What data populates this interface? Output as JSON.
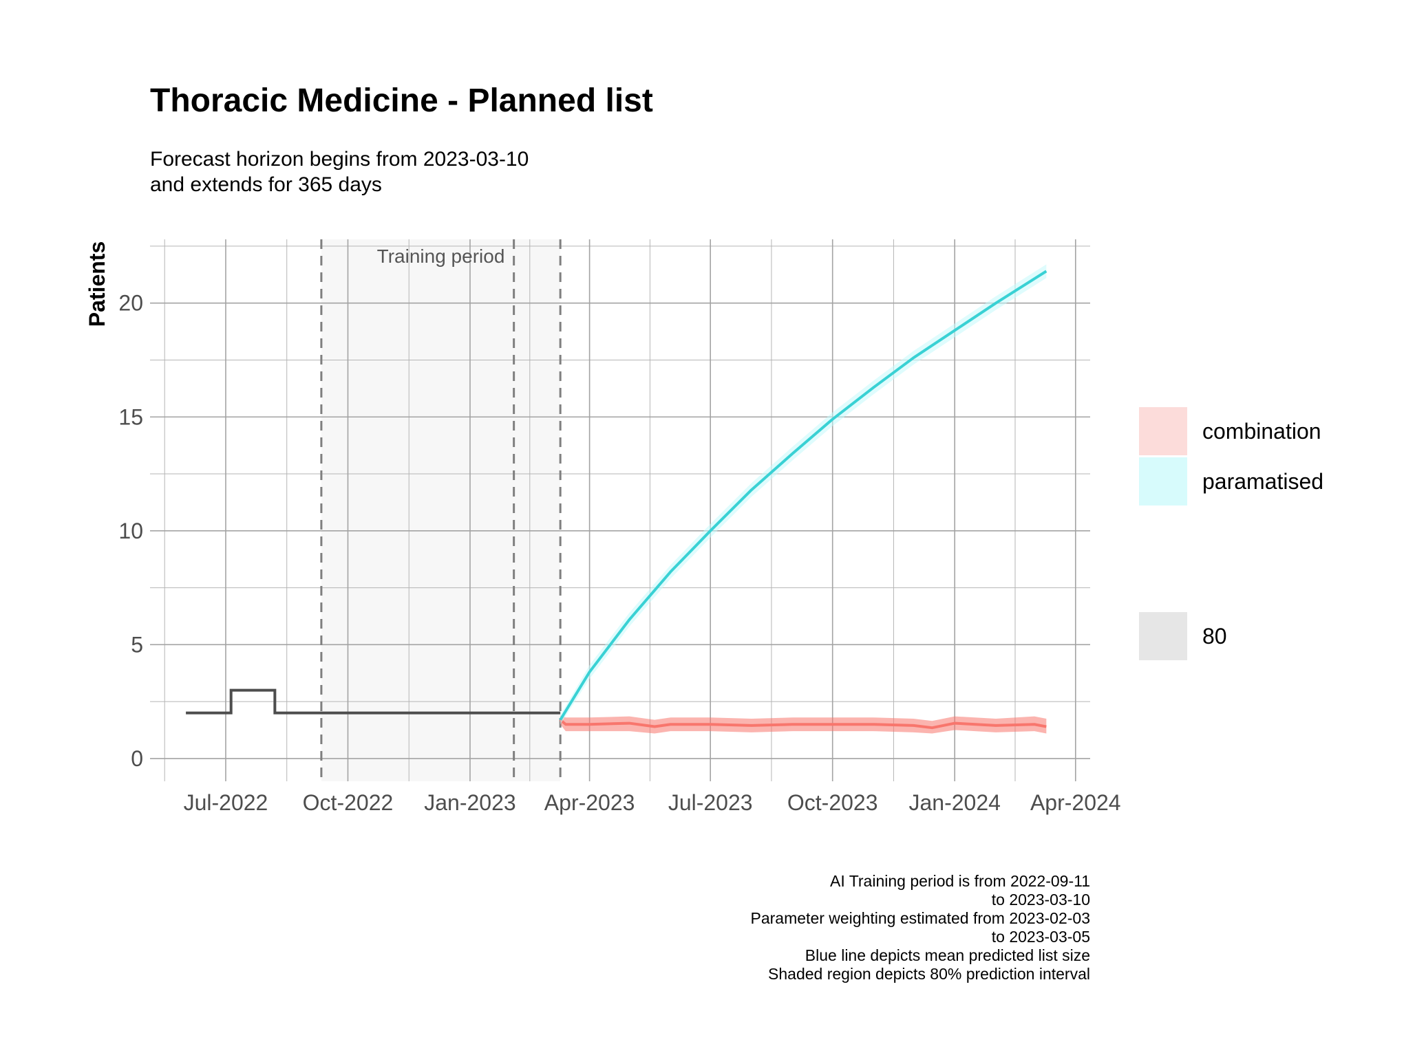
{
  "chart_data": {
    "type": "line",
    "title": "Thoracic Medicine - Planned list",
    "subtitle": [
      "Forecast horizon begins from 2023-03-10",
      "and extends for 365 days"
    ],
    "xlabel": "",
    "ylabel": "Patients",
    "xlim": [
      "2022-05-05",
      "2024-04-12"
    ],
    "ylim": [
      -1,
      22.8
    ],
    "x_ticks": [
      "2022-07-01",
      "2022-10-01",
      "2023-01-01",
      "2023-04-01",
      "2023-07-01",
      "2023-10-01",
      "2024-01-01",
      "2024-04-01"
    ],
    "x_tick_labels": [
      "Jul-2022",
      "Oct-2022",
      "Jan-2023",
      "Apr-2023",
      "Jul-2023",
      "Oct-2023",
      "Jan-2024",
      "Apr-2024"
    ],
    "y_ticks": [
      0,
      5,
      10,
      15,
      20
    ],
    "y_tick_labels": [
      "0",
      "5",
      "10",
      "15",
      "20"
    ],
    "grid": true,
    "training_period": {
      "start": "2022-09-11",
      "end": "2023-03-10",
      "label": "Training period",
      "color": "#f7f7f7"
    },
    "vlines_dashed": [
      "2022-09-11",
      "2023-02-03",
      "2023-03-10"
    ],
    "observed": {
      "color": "#4d4d4d",
      "x": [
        "2022-06-01",
        "2022-07-05",
        "2022-08-07",
        "2023-03-10"
      ],
      "y": [
        2,
        3,
        2,
        2
      ],
      "step": true
    },
    "series": [
      {
        "name": "combination",
        "color": "#f8766d",
        "band_color": "#f8766d",
        "x": [
          "2023-03-10",
          "2023-03-14",
          "2023-04-01",
          "2023-05-01",
          "2023-05-20",
          "2023-06-01",
          "2023-07-01",
          "2023-08-01",
          "2023-09-01",
          "2023-10-01",
          "2023-11-01",
          "2023-12-01",
          "2023-12-15",
          "2024-01-01",
          "2024-02-01",
          "2024-03-01",
          "2024-03-10"
        ],
        "y": [
          1.7,
          1.5,
          1.5,
          1.55,
          1.4,
          1.5,
          1.5,
          1.45,
          1.5,
          1.5,
          1.5,
          1.45,
          1.35,
          1.55,
          1.45,
          1.5,
          1.4
        ],
        "lower": [
          1.5,
          1.2,
          1.2,
          1.2,
          1.1,
          1.2,
          1.2,
          1.15,
          1.2,
          1.2,
          1.2,
          1.15,
          1.1,
          1.25,
          1.15,
          1.2,
          1.1
        ],
        "upper": [
          1.9,
          1.8,
          1.8,
          1.85,
          1.7,
          1.8,
          1.8,
          1.75,
          1.8,
          1.8,
          1.8,
          1.75,
          1.65,
          1.85,
          1.75,
          1.85,
          1.75
        ]
      },
      {
        "name": "paramatised",
        "color": "#39d1d4",
        "band_color": "#c5f9fb",
        "x": [
          "2023-03-10",
          "2023-04-01",
          "2023-05-01",
          "2023-06-01",
          "2023-07-01",
          "2023-08-01",
          "2023-09-01",
          "2023-10-01",
          "2023-11-01",
          "2023-12-01",
          "2024-01-01",
          "2024-02-01",
          "2024-03-10"
        ],
        "y": [
          1.7,
          3.8,
          6.1,
          8.2,
          10.0,
          11.8,
          13.4,
          14.9,
          16.3,
          17.6,
          18.8,
          20.0,
          21.4
        ],
        "lower": [
          1.5,
          3.5,
          5.8,
          7.9,
          9.7,
          11.5,
          13.1,
          14.6,
          16.0,
          17.3,
          18.5,
          19.7,
          21.1
        ],
        "upper": [
          1.9,
          4.1,
          6.4,
          8.5,
          10.3,
          12.1,
          13.7,
          15.2,
          16.6,
          17.9,
          19.1,
          20.3,
          21.7
        ]
      }
    ],
    "legend": {
      "placement": "right",
      "items": [
        {
          "label": "combination",
          "color": "#fcdcda"
        },
        {
          "label": "paramatised",
          "color": "#d7fbfc"
        },
        {
          "label": "80",
          "color": "#e6e6e6"
        }
      ]
    },
    "caption": [
      "AI Training period is from 2022-09-11",
      "to 2023-03-10",
      "Parameter weighting estimated from 2023-02-03",
      "to 2023-03-05",
      "Blue line depicts mean predicted list size",
      "Shaded region depicts 80% prediction interval"
    ]
  }
}
